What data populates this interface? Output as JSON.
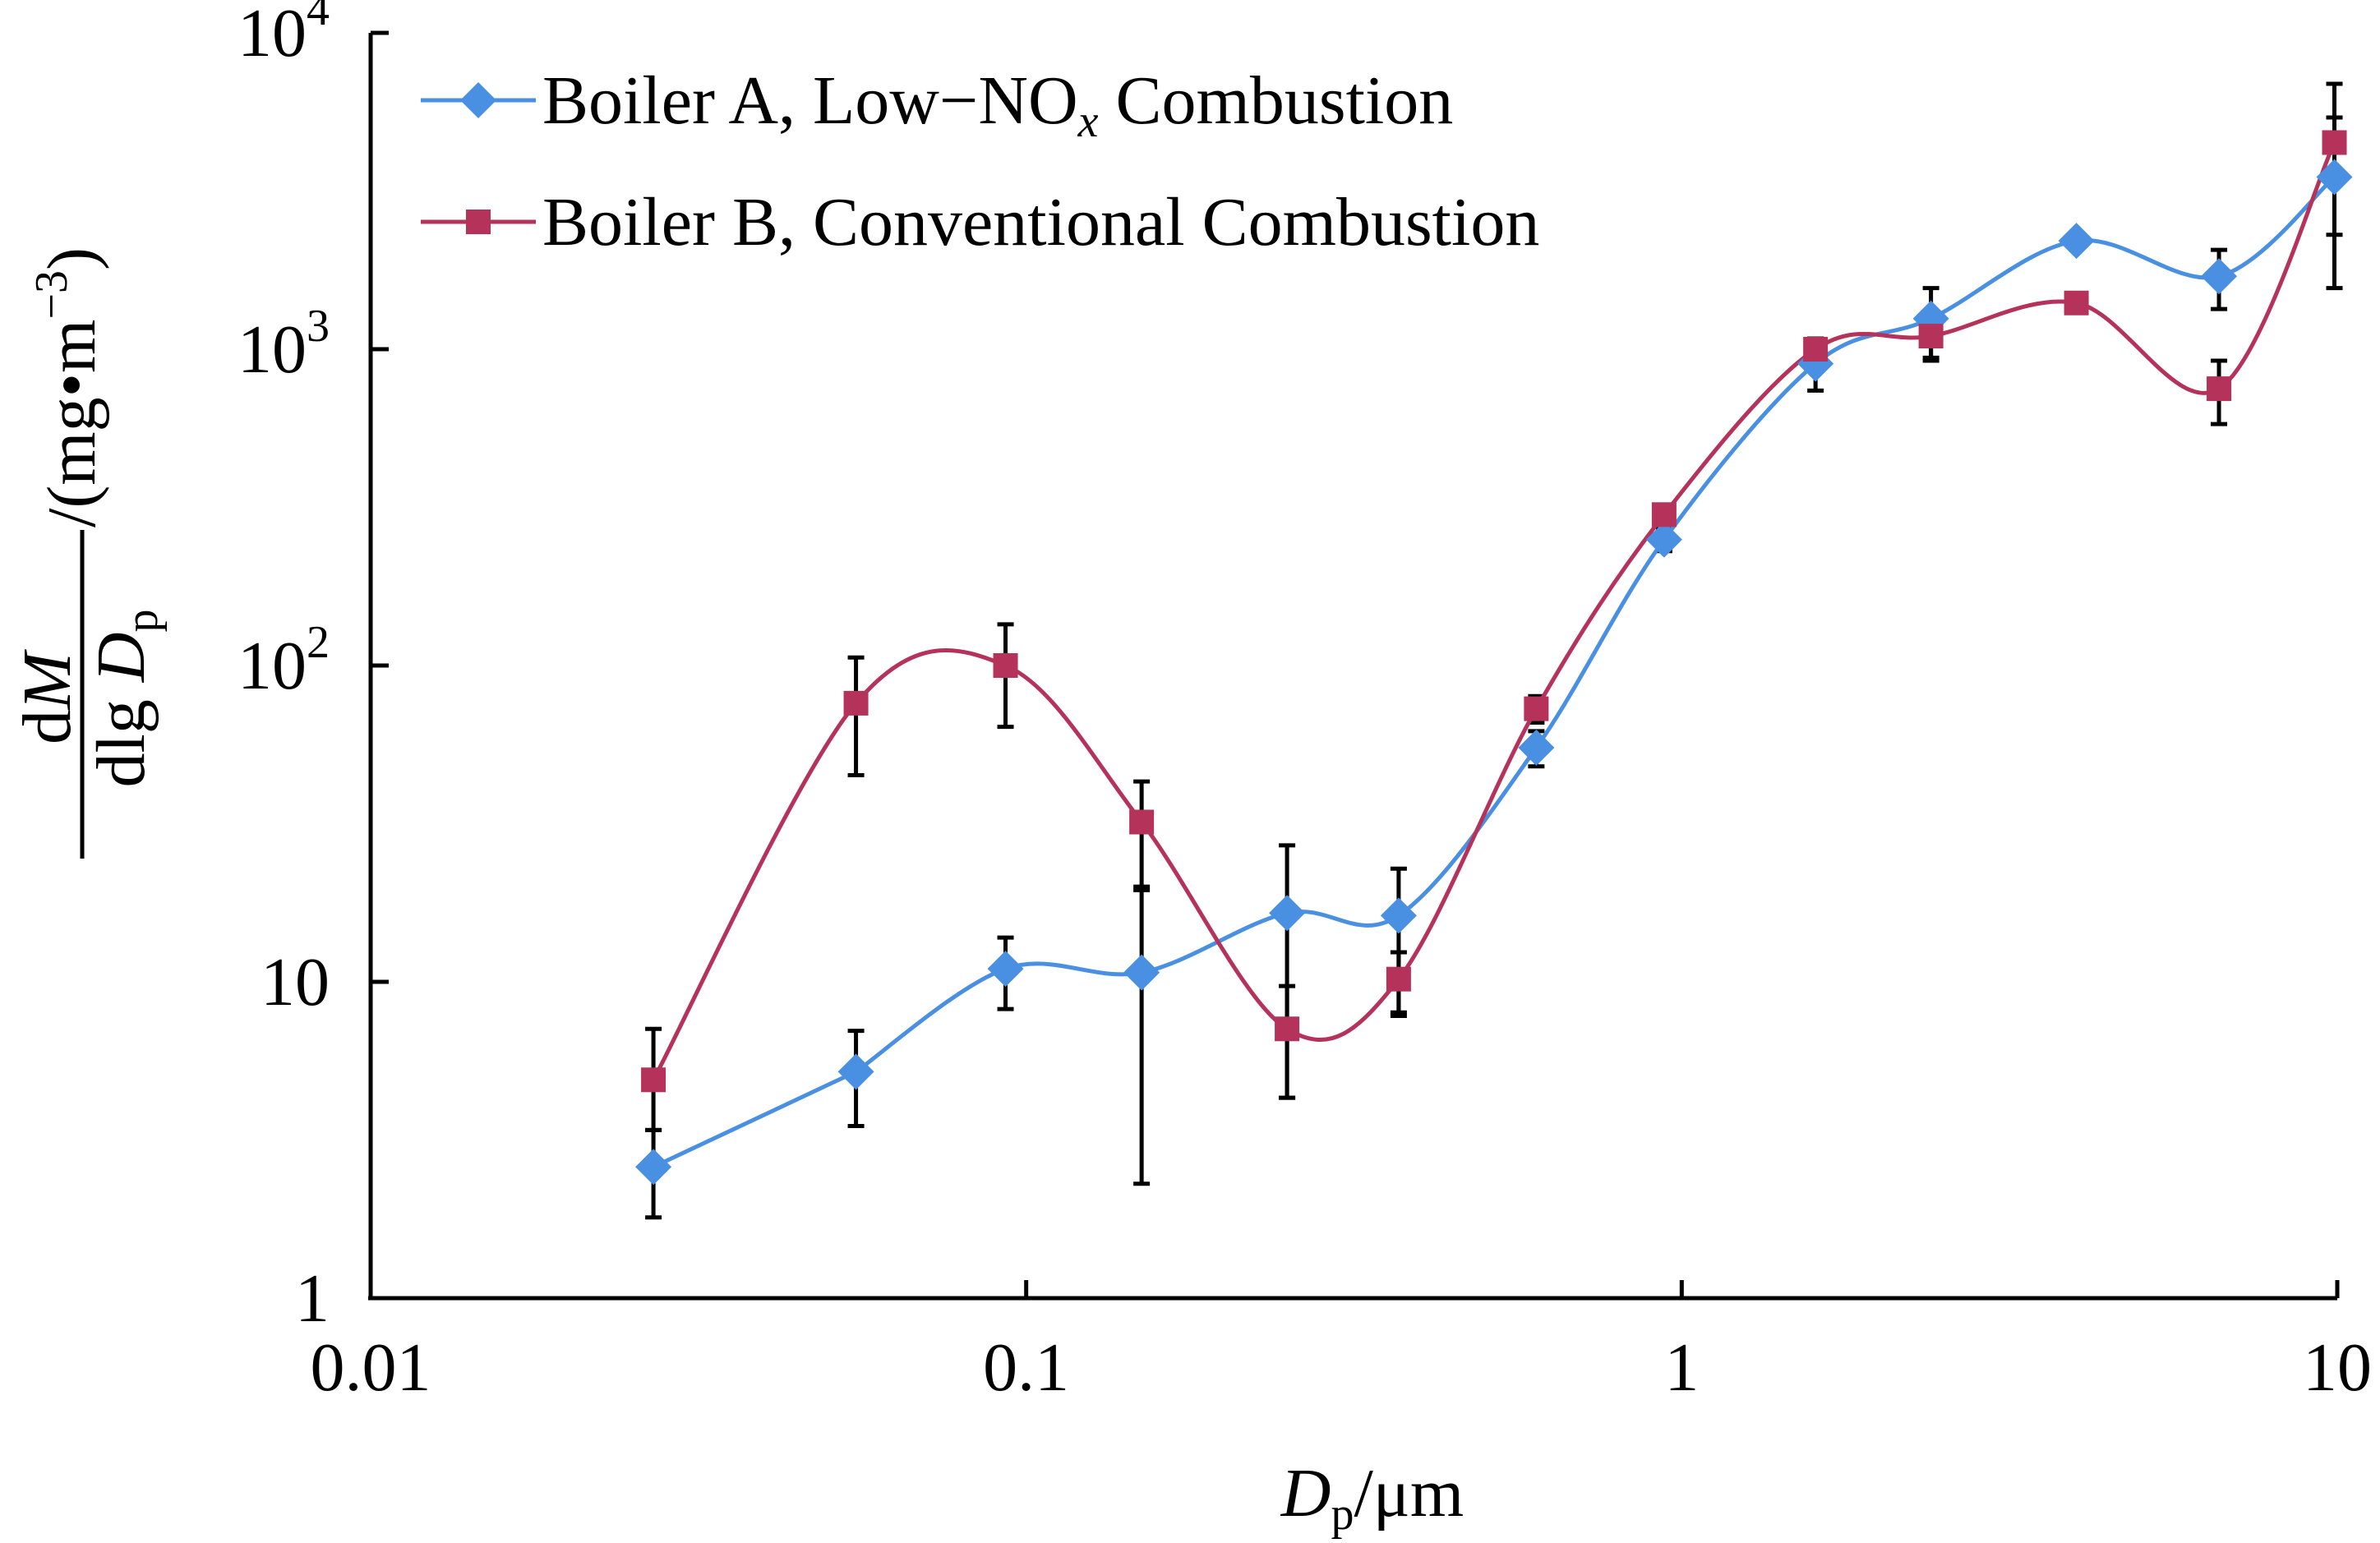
{
  "chart_data": {
    "type": "line",
    "xscale": "log",
    "yscale": "log",
    "xlim": [
      0.01,
      10
    ],
    "ylim": [
      1,
      10000
    ],
    "x_tick_labels": [
      "0.01",
      "0.1",
      "1",
      "10"
    ],
    "x_tick_values": [
      0.01,
      0.1,
      1,
      10
    ],
    "y_ticks": [
      {
        "value": 1,
        "base": "1",
        "exp": ""
      },
      {
        "value": 10,
        "base": "10",
        "exp": ""
      },
      {
        "value": 100,
        "base": "10",
        "exp": "2"
      },
      {
        "value": 1000,
        "base": "10",
        "exp": "3"
      },
      {
        "value": 10000,
        "base": "10",
        "exp": "4"
      }
    ],
    "xlabel": {
      "main": "D",
      "sub": "p",
      "unit": "/μm"
    },
    "ylabel": {
      "num": "dM",
      "den_prefix": "dlg ",
      "den_var": "D",
      "den_sub": "p",
      "unit_pre": "/(mg•m",
      "unit_exp": "−3",
      "unit_post": ")"
    },
    "legend_position": "top-left",
    "grid": false,
    "series": [
      {
        "name": "Boiler A, Low−NOx Combustion",
        "legend": {
          "pre": "Boiler A, Low−NO",
          "sub": "x",
          "post": " Combustion"
        },
        "color": "#4A90E2",
        "marker": "diamond",
        "x": [
          0.027,
          0.055,
          0.093,
          0.15,
          0.25,
          0.37,
          0.6,
          0.94,
          1.6,
          2.4,
          4.0,
          6.6,
          9.9
        ],
        "y": [
          2.6,
          5.2,
          11,
          10.7,
          16.5,
          16.2,
          55,
          250,
          900,
          1250,
          2200,
          1700,
          3500
        ],
        "err_low": [
          1.8,
          3.5,
          8.2,
          2.3,
          4.3,
          7.8,
          48,
          230,
          740,
          940,
          null,
          1340,
          1560
        ],
        "err_high": [
          3.4,
          7.0,
          13.8,
          19.5,
          27,
          22.8,
          62,
          270,
          1080,
          1560,
          null,
          2060,
          5400
        ]
      },
      {
        "name": "Boiler B, Conventional Combustion",
        "legend": {
          "pre": "Boiler B, Conventional Combustion",
          "sub": "",
          "post": ""
        },
        "color": "#B5325A",
        "marker": "square",
        "x": [
          0.027,
          0.055,
          0.093,
          0.15,
          0.25,
          0.37,
          0.6,
          0.94,
          1.6,
          2.4,
          4.0,
          6.6,
          9.9
        ],
        "y": [
          4.9,
          76,
          100,
          32,
          7.1,
          10.2,
          73,
          300,
          1000,
          1100,
          1400,
          750,
          4500
        ],
        "err_low": [
          3.4,
          45,
          64,
          20,
          4.3,
          8.0,
          66,
          280,
          920,
          920,
          null,
          580,
          2300
        ],
        "err_high": [
          7.1,
          106,
          135,
          43,
          9.7,
          12.4,
          80,
          320,
          1080,
          1280,
          null,
          920,
          6900
        ]
      }
    ]
  }
}
